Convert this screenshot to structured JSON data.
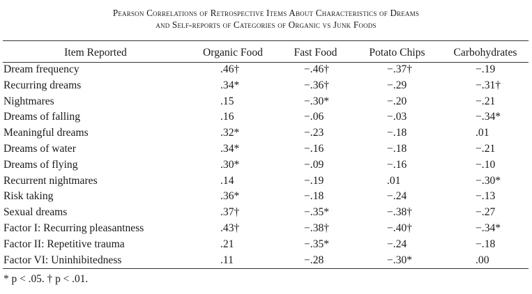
{
  "title": {
    "line1": "Pearson Correlations of Retrospective Items About Characteristics of Dreams",
    "line2": "and Self-reports of Categories of Organic vs Junk Foods"
  },
  "columns": [
    "Item Reported",
    "Organic Food",
    "Fast Food",
    "Potato Chips",
    "Carbohydrates"
  ],
  "rows": [
    {
      "item": "Dream frequency",
      "organic": ".46†",
      "fast": "−.46†",
      "chips": "−.37†",
      "carbs": "−.19"
    },
    {
      "item": "Recurring dreams",
      "organic": ".34*",
      "fast": "−.36†",
      "chips": "−.29",
      "carbs": "−.31†"
    },
    {
      "item": "Nightmares",
      "organic": ".15",
      "fast": "−.30*",
      "chips": "−.20",
      "carbs": "−.21"
    },
    {
      "item": "Dreams of falling",
      "organic": ".16",
      "fast": "−.06",
      "chips": "−.03",
      "carbs": "−.34*"
    },
    {
      "item": "Meaningful dreams",
      "organic": ".32*",
      "fast": "−.23",
      "chips": "−.18",
      "carbs": ".01"
    },
    {
      "item": "Dreams of water",
      "organic": ".34*",
      "fast": "−.16",
      "chips": "−.18",
      "carbs": "−.21"
    },
    {
      "item": "Dreams of flying",
      "organic": ".30*",
      "fast": "−.09",
      "chips": "−.16",
      "carbs": "−.10"
    },
    {
      "item": "Recurrent nightmares",
      "organic": ".14",
      "fast": "−.19",
      "chips": ".01",
      "carbs": "−.30*"
    },
    {
      "item": "Risk taking",
      "organic": ".36*",
      "fast": "−.18",
      "chips": "−.24",
      "carbs": "−.13"
    },
    {
      "item": "Sexual dreams",
      "organic": ".37†",
      "fast": "−.35*",
      "chips": "−.38†",
      "carbs": "−.27"
    },
    {
      "item": "Factor I: Recurring pleasantness",
      "organic": ".43†",
      "fast": "−.38†",
      "chips": "−.40†",
      "carbs": "−.34*"
    },
    {
      "item": "Factor II: Repetitive trauma",
      "organic": ".21",
      "fast": "−.35*",
      "chips": "−.24",
      "carbs": "−.18"
    },
    {
      "item": "Factor VI: Uninhibitedness",
      "organic": ".11",
      "fast": "−.28",
      "chips": "−.30*",
      "carbs": ".00"
    }
  ],
  "footnote": "* p < .05.  † p < .01."
}
